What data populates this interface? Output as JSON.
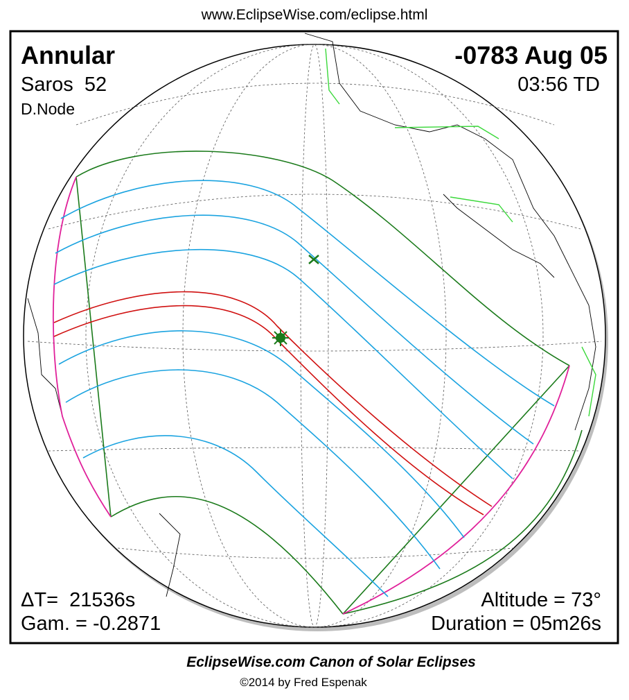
{
  "header": {
    "url": "www.EclipseWise.com/eclipse.html"
  },
  "info": {
    "type": "Annular",
    "saros": "Saros  52",
    "node": "D.Node",
    "date": "-0783 Aug 05",
    "time": "03:56 TD",
    "delta_t": "ΔT=  21536s",
    "gamma": "Gam. = -0.2871",
    "altitude": "Altitude = 73°",
    "duration": "Duration = 05m26s"
  },
  "footer": {
    "title": "EclipseWise.com Canon of Solar Eclipses",
    "copyright": "©2014 by Fred Espenak"
  }
}
